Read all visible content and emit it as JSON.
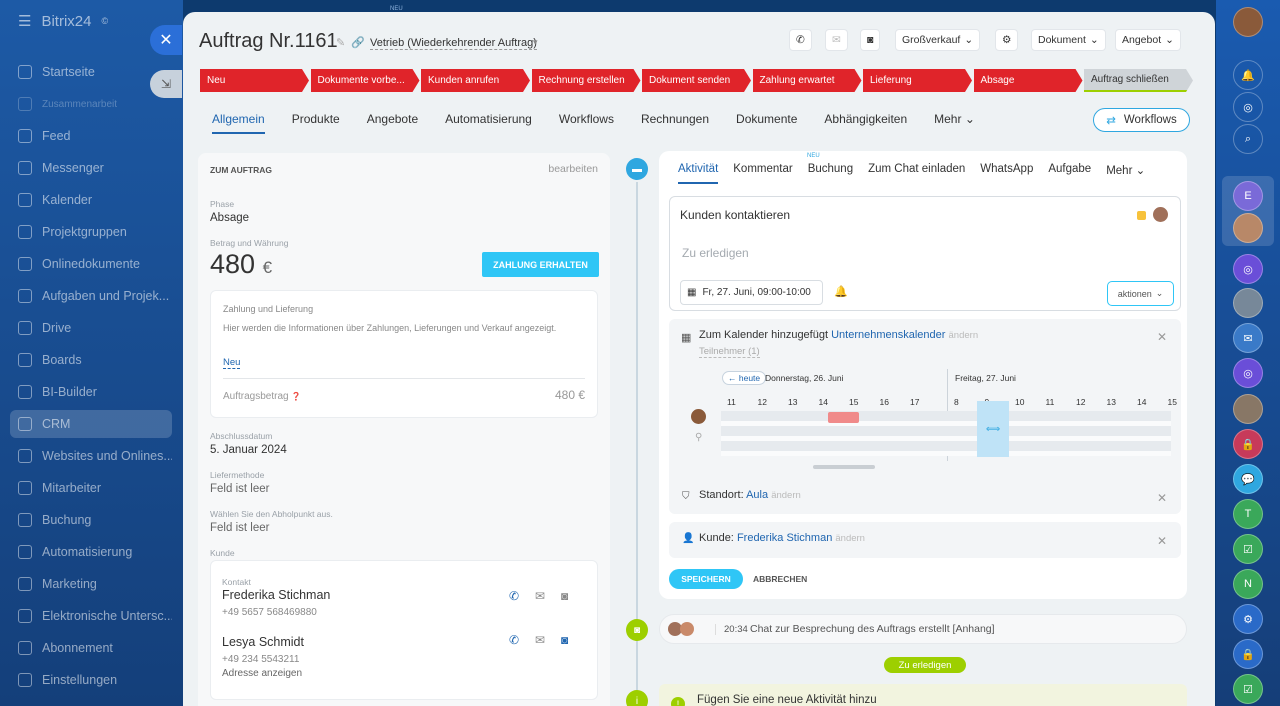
{
  "app": {
    "logo": "Bitrix24",
    "logo_mark": "©"
  },
  "sidebar": {
    "items": [
      {
        "label": "Startseite",
        "icon": "home-icon"
      },
      {
        "label": "Zusammenarbeit",
        "icon": "collab-icon"
      },
      {
        "label": "Feed",
        "icon": "feed-icon"
      },
      {
        "label": "Messenger",
        "icon": "chat-icon"
      },
      {
        "label": "Kalender",
        "icon": "calendar-icon"
      },
      {
        "label": "Projektgruppen",
        "icon": "groups-icon"
      },
      {
        "label": "Onlinedokumente",
        "icon": "document-icon"
      },
      {
        "label": "Aufgaben und Projek...",
        "icon": "tasks-icon"
      },
      {
        "label": "Drive",
        "icon": "drive-icon"
      },
      {
        "label": "Boards",
        "icon": "boards-icon"
      },
      {
        "label": "BI-Builder",
        "icon": "chart-icon"
      },
      {
        "label": "CRM",
        "icon": "crm-icon"
      },
      {
        "label": "Websites und Onlines...",
        "icon": "cart-icon"
      },
      {
        "label": "Mitarbeiter",
        "icon": "employees-icon"
      },
      {
        "label": "Buchung",
        "icon": "booking-icon"
      },
      {
        "label": "Automatisierung",
        "icon": "automation-icon"
      },
      {
        "label": "Marketing",
        "icon": "marketing-icon"
      },
      {
        "label": "Elektronische Untersc...",
        "icon": "signature-icon"
      },
      {
        "label": "Abonnement",
        "icon": "subscription-icon"
      },
      {
        "label": "Einstellungen",
        "icon": "settings-icon"
      }
    ]
  },
  "deal": {
    "title": "Auftrag Nr.1161",
    "pipeline": "Vetrieb (Wiederkehrender Auftrag)",
    "new_badge": "NEU"
  },
  "header_buttons": {
    "grosskauf": "Großverkauf",
    "dokument": "Dokument",
    "angebot": "Angebot"
  },
  "stages": [
    {
      "label": "Neu",
      "color": "#e0242a"
    },
    {
      "label": "Dokumente vorbe...",
      "color": "#e0242a"
    },
    {
      "label": "Kunden anrufen",
      "color": "#e0242a"
    },
    {
      "label": "Rechnung erstellen",
      "color": "#e0242a"
    },
    {
      "label": "Dokument senden",
      "color": "#e0242a"
    },
    {
      "label": "Zahlung erwartet",
      "color": "#e0242a"
    },
    {
      "label": "Lieferung",
      "color": "#e0242a"
    },
    {
      "label": "Absage",
      "color": "#e0242a"
    },
    {
      "label": "Auftrag schließen",
      "color": "#cfd4d8"
    }
  ],
  "tabs": [
    "Allgemein",
    "Produkte",
    "Angebote",
    "Automatisierung",
    "Workflows",
    "Rechnungen",
    "Dokumente",
    "Abhängigkeiten",
    "Mehr"
  ],
  "workflows_button": "Workflows",
  "left": {
    "section_title": "ZUM AUFTRAG",
    "edit": "bearbeiten",
    "phase_label": "Phase",
    "phase": "Absage",
    "amount_label": "Betrag und Währung",
    "amount": "480",
    "currency": "€",
    "pay_button": "ZAHLUNG ERHALTEN",
    "pay_section": "Zahlung und Lieferung",
    "pay_info": "Hier werden die Informationen über Zahlungen, Lieferungen und Verkauf angezeigt.",
    "new_link": "Neu",
    "order_amount_label": "Auftragsbetrag",
    "order_amount": "480 €",
    "close_date_label": "Abschlussdatum",
    "close_date": "5. Januar 2024",
    "delivery_label": "Liefermethode",
    "delivery": "Feld ist leer",
    "pickup_label": "Wählen Sie den Abholpunkt aus.",
    "pickup": "Feld ist leer",
    "client_label": "Kunde",
    "contact_label": "Kontakt",
    "contact1_name": "Frederika Stichman",
    "contact1_phone": "+49 5657 568469880",
    "contact2_name": "Lesya Schmidt",
    "contact2_phone": "+49 234 5543211",
    "address_link": "Adresse anzeigen"
  },
  "activity": {
    "tabs": [
      "Aktivität",
      "Kommentar",
      "Buchung",
      "Zum Chat einladen",
      "WhatsApp",
      "Aufgabe",
      "Mehr"
    ],
    "buchung_badge": "NEU",
    "title": "Kunden kontaktieren",
    "placeholder": "Zu erledigen",
    "date": "Fr, 27. Juni, 09:00-10:00",
    "actions": "aktionen",
    "calendar_text": "Zum Kalender hinzugefügt",
    "calendar_link": "Unternehmenskalender",
    "change": "ändern",
    "participants": "Teilnehmer (1)",
    "today": "← heute",
    "day1": "Donnerstag, 26. Juni",
    "day2": "Freitag, 27. Juni",
    "hours1": [
      "11",
      "12",
      "13",
      "14",
      "15",
      "16",
      "17"
    ],
    "hours2": [
      "8",
      "9",
      "10",
      "11",
      "12",
      "13",
      "14",
      "15"
    ],
    "location_label": "Standort:",
    "location": "Aula",
    "client_label": "Kunde:",
    "client": "Frederika Stichman",
    "save": "SPEICHERN",
    "cancel": "ABBRECHEN"
  },
  "timeline": {
    "time": "20:34",
    "text": "Chat zur Besprechung des Auftrags erstellt [Anhang]",
    "todo_badge": "Zu erledigen",
    "add": "Fügen Sie eine neue Aktivität hinzu"
  },
  "colors": {
    "accent": "#2fc6f6",
    "stage_red": "#e0242a",
    "link": "#2066b0",
    "green": "#9dcf00"
  }
}
